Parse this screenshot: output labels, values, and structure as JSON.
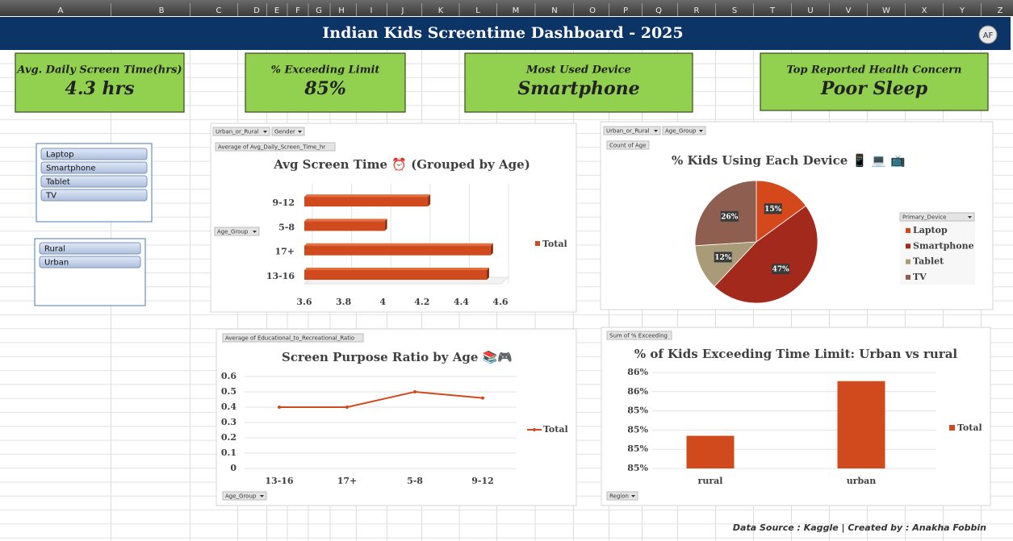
{
  "sheet": {
    "columns": [
      "A",
      "B",
      "C",
      "D",
      "E",
      "F",
      "G",
      "H",
      "I",
      "J",
      "K",
      "L",
      "M",
      "N",
      "O",
      "P",
      "Q",
      "R",
      "S",
      "T",
      "U",
      "V",
      "W",
      "X",
      "Y",
      "Z"
    ]
  },
  "header": {
    "title": "Indian Kids Screentime Dashboard - 2025",
    "badge": "AF"
  },
  "kpis": [
    {
      "label": "Avg. Daily Screen Time(hrs)",
      "value": "4.3 hrs"
    },
    {
      "label": "% Exceeding Limit",
      "value": "85%"
    },
    {
      "label": "Most Used Device",
      "value": "Smartphone"
    },
    {
      "label": "Top Reported Health Concern",
      "value": "Poor Sleep"
    }
  ],
  "slicers": [
    {
      "items": [
        "Laptop",
        "Smartphone",
        "Tablet",
        "TV"
      ]
    },
    {
      "items": [
        "Rural",
        "Urban"
      ]
    }
  ],
  "chart_data": [
    {
      "type": "bar",
      "title": "Avg Screen Time ⏰ (Grouped by Age)",
      "filters": [
        "Urban_or_Rural",
        "Gender"
      ],
      "value_field": "Average of Avg_Daily_Screen_Time_hr",
      "axis_field": "Age_Group",
      "categories": [
        "13-16",
        "17+",
        "5-8",
        "9-12"
      ],
      "series": [
        {
          "name": "Total",
          "color": "#d04a1e",
          "values": [
            4.53,
            4.55,
            4.01,
            4.23
          ]
        }
      ],
      "xlim": [
        3.6,
        4.6
      ],
      "xticks": [
        3.6,
        3.8,
        4,
        4.2,
        4.4,
        4.6
      ],
      "grid": true
    },
    {
      "type": "pie",
      "title": "% Kids Using Each Device 📱 💻 📺",
      "filters": [
        "Urban_or_Rural",
        "Age_Group"
      ],
      "value_field": "Count of Age",
      "legend_title": "Primary_Device",
      "categories": [
        "Laptop",
        "Smartphone",
        "Tablet",
        "TV"
      ],
      "values": [
        15,
        47,
        12,
        26
      ],
      "value_labels": [
        "15%",
        "47%",
        "12%",
        "26%"
      ],
      "colors": [
        "#d4481c",
        "#a3291d",
        "#a99a78",
        "#8e5e51"
      ]
    },
    {
      "type": "line",
      "title": "Screen Purpose Ratio by Age 📚🎮",
      "value_field": "Average of Educational_to_Recreational_Ratio",
      "axis_field": "Age_Group",
      "categories": [
        "13-16",
        "17+",
        "5-8",
        "9-12"
      ],
      "series": [
        {
          "name": "Total",
          "color": "#d04a1e",
          "values": [
            0.4,
            0.4,
            0.5,
            0.46
          ]
        }
      ],
      "ylim": [
        0,
        0.6
      ],
      "yticks": [
        0,
        0.1,
        0.2,
        0.3,
        0.4,
        0.5,
        0.6
      ],
      "grid": true
    },
    {
      "type": "column",
      "title": "% of Kids Exceeding Time Limit: Urban vs rural",
      "value_field": "Sum of % Exceeding",
      "axis_field": "Region",
      "categories": [
        "rural",
        "urban"
      ],
      "series": [
        {
          "name": "Total",
          "color": "#d04a1e",
          "values": [
            85.14,
            85.71
          ]
        }
      ],
      "ylim": [
        84.8,
        85.8
      ],
      "yticks": [
        {
          "value": 84.8,
          "label": "85%"
        },
        {
          "value": 85.0,
          "label": "85%"
        },
        {
          "value": 85.2,
          "label": "85%"
        },
        {
          "value": 85.4,
          "label": "85%"
        },
        {
          "value": 85.6,
          "label": "86%"
        },
        {
          "value": 85.8,
          "label": "86%"
        }
      ],
      "grid": true
    }
  ],
  "footer": "Data Source : Kaggle | Created by : Anakha Fobbin"
}
